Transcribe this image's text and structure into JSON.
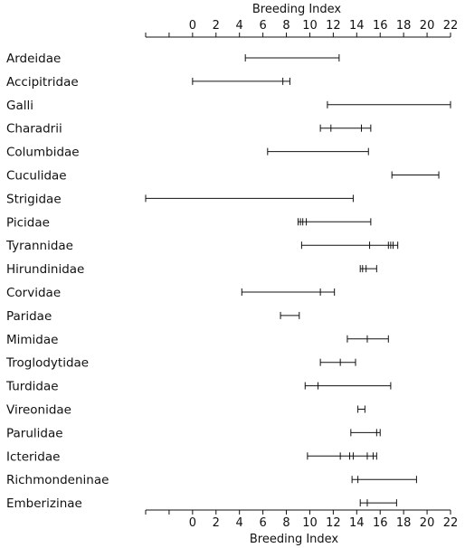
{
  "chart_data": {
    "type": "range",
    "xlabel_top": "Breeding Index",
    "xlabel_bottom": "Breeding Index",
    "xlim": [
      -4,
      22
    ],
    "xticks": [
      0,
      2,
      4,
      6,
      8,
      10,
      12,
      14,
      16,
      18,
      20,
      22
    ],
    "minor_ticks": [
      -2
    ],
    "families": [
      {
        "name": "Ardeidae",
        "min": 4.5,
        "max": 12.5,
        "marks": []
      },
      {
        "name": "Accipitridae",
        "min": 0.0,
        "max": 8.3,
        "marks": [
          7.7
        ]
      },
      {
        "name": "Galli",
        "min": 11.5,
        "max": 22.0,
        "marks": []
      },
      {
        "name": "Charadrii",
        "min": 10.9,
        "max": 15.2,
        "marks": [
          11.8,
          14.4
        ]
      },
      {
        "name": "Columbidae",
        "min": 6.4,
        "max": 15.0,
        "marks": []
      },
      {
        "name": "Cuculidae",
        "min": 17.0,
        "max": 21.0,
        "marks": []
      },
      {
        "name": "Strigidae",
        "min": -4.0,
        "max": 13.7,
        "marks": []
      },
      {
        "name": "Picidae",
        "min": 9.0,
        "max": 15.2,
        "marks": [
          9.2,
          9.4,
          9.7
        ]
      },
      {
        "name": "Tyrannidae",
        "min": 9.3,
        "max": 17.5,
        "marks": [
          15.1,
          16.7,
          16.9,
          17.1
        ]
      },
      {
        "name": "Hirundinidae",
        "min": 14.3,
        "max": 15.7,
        "marks": [
          14.5,
          14.8
        ]
      },
      {
        "name": "Corvidae",
        "min": 4.2,
        "max": 12.1,
        "marks": [
          10.9
        ]
      },
      {
        "name": "Paridae",
        "min": 7.5,
        "max": 9.1,
        "marks": []
      },
      {
        "name": "Mimidae",
        "min": 13.2,
        "max": 16.7,
        "marks": [
          14.9
        ]
      },
      {
        "name": "Troglodytidae",
        "min": 10.9,
        "max": 13.9,
        "marks": [
          12.6
        ]
      },
      {
        "name": "Turdidae",
        "min": 9.6,
        "max": 16.9,
        "marks": [
          10.7
        ]
      },
      {
        "name": "Vireonidae",
        "min": 14.1,
        "max": 14.7,
        "marks": []
      },
      {
        "name": "Parulidae",
        "min": 13.5,
        "max": 16.0,
        "marks": [
          15.7
        ]
      },
      {
        "name": "Icteridae",
        "min": 9.8,
        "max": 15.7,
        "marks": [
          12.6,
          13.4,
          13.7,
          14.9,
          15.4
        ]
      },
      {
        "name": "Richmondeninae",
        "min": 13.6,
        "max": 19.1,
        "marks": [
          14.1
        ]
      },
      {
        "name": "Emberizinae",
        "min": 14.3,
        "max": 17.4,
        "marks": [
          14.9
        ]
      }
    ]
  }
}
